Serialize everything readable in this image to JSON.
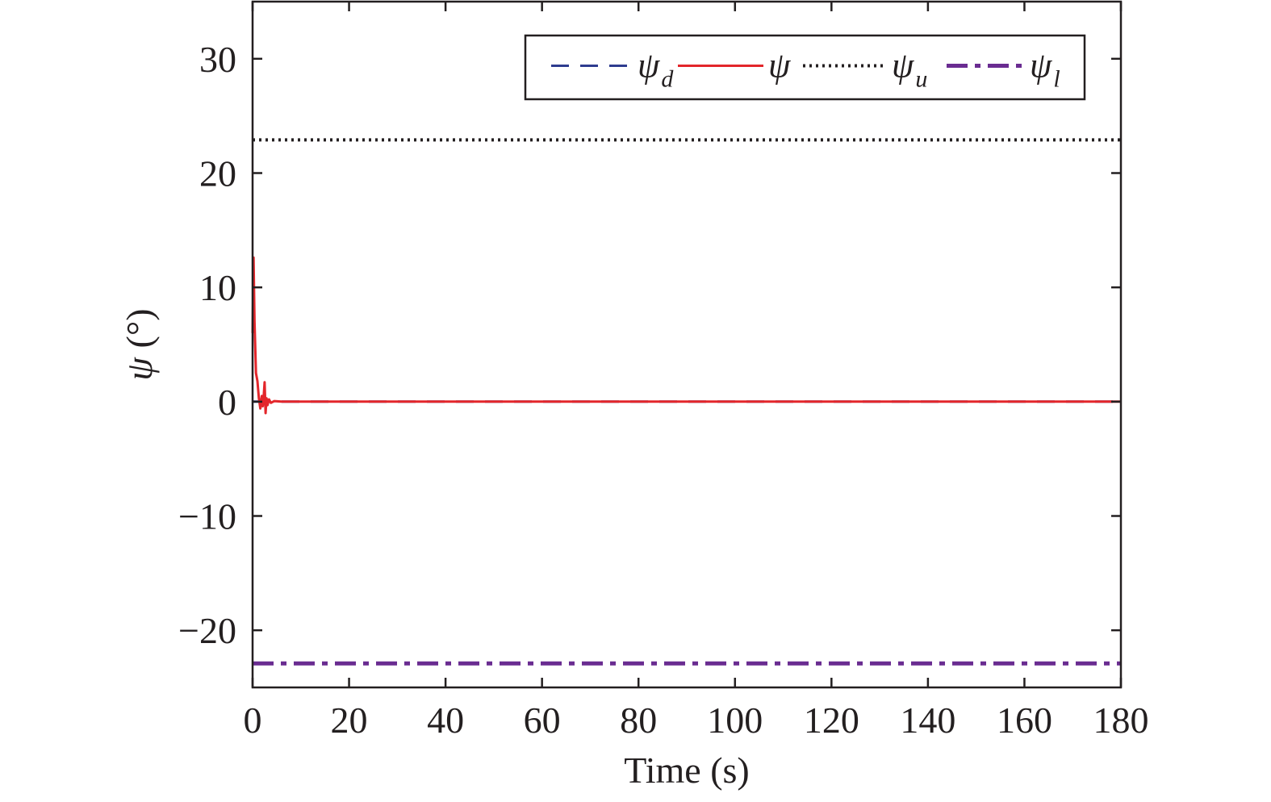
{
  "chart_data": {
    "type": "line",
    "xlabel": "Time (s)",
    "ylabel_symbol": "ψ",
    "ylabel_unit": "(°)",
    "xlim": [
      0,
      180
    ],
    "ylim": [
      -25,
      35
    ],
    "xticks": [
      0,
      20,
      40,
      60,
      80,
      100,
      120,
      140,
      160,
      180
    ],
    "yticks": [
      -20,
      -10,
      0,
      10,
      20,
      30
    ],
    "ytick_labels": [
      "−20",
      "−10",
      "0",
      "10",
      "20",
      "30"
    ],
    "grid": false,
    "legend_position": "top-right",
    "series": [
      {
        "symbol": "ψ",
        "subscript": "d",
        "color": "#2e3c8f",
        "style": "dashed",
        "x": [
          0,
          180
        ],
        "y": [
          0,
          0
        ]
      },
      {
        "symbol": "ψ",
        "subscript": "",
        "color": "#e3262b",
        "style": "solid",
        "x": [
          0,
          0.2,
          0.4,
          0.7,
          1.0,
          1.3,
          1.6,
          1.9,
          2.1,
          2.3,
          2.5,
          2.7,
          2.9,
          3.1,
          3.4,
          3.8,
          4.5,
          6,
          10,
          180
        ],
        "y": [
          6,
          12.6,
          7,
          2.5,
          1.8,
          0.3,
          -0.6,
          0.5,
          -0.4,
          0.4,
          1.7,
          -1.0,
          0.3,
          -0.3,
          0.2,
          -0.1,
          0.05,
          0,
          0,
          0
        ]
      },
      {
        "symbol": "ψ",
        "subscript": "u",
        "color": "#231f20",
        "style": "dotted",
        "x": [
          0,
          180
        ],
        "y": [
          22.9,
          22.9
        ]
      },
      {
        "symbol": "ψ",
        "subscript": "l",
        "color": "#6a2c91",
        "style": "dashdot",
        "x": [
          0,
          180
        ],
        "y": [
          -22.9,
          -22.9
        ]
      }
    ]
  }
}
